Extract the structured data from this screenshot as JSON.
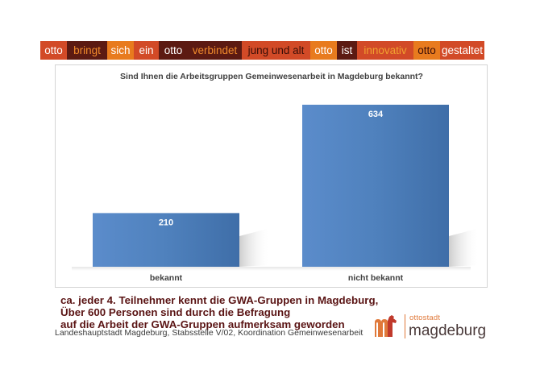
{
  "banner": [
    {
      "text": "otto",
      "bg": "#d24a27",
      "fg": "#ffffff"
    },
    {
      "text": "bringt",
      "bg": "#5c1a12",
      "fg": "#f08a2c"
    },
    {
      "text": "sich",
      "bg": "#e87b1e",
      "fg": "#ffffff"
    },
    {
      "text": "ein",
      "bg": "#d24a27",
      "fg": "#ffffff"
    },
    {
      "text": "otto",
      "bg": "#5c1a12",
      "fg": "#ffffff"
    },
    {
      "text": "verbindet",
      "bg": "#5c1a12",
      "fg": "#f08a2c"
    },
    {
      "text": "jung und alt",
      "bg": "#d24a27",
      "fg": "#3a0e08"
    },
    {
      "text": "otto",
      "bg": "#e87b1e",
      "fg": "#ffffff"
    },
    {
      "text": "ist",
      "bg": "#5c1a12",
      "fg": "#ffffff"
    },
    {
      "text": "innovativ",
      "bg": "#d24a27",
      "fg": "#f0a030"
    },
    {
      "text": "otto",
      "bg": "#e87b1e",
      "fg": "#3a0e08"
    },
    {
      "text": "gestaltet",
      "bg": "#d24a27",
      "fg": "#ffffff"
    }
  ],
  "chart_data": {
    "type": "bar",
    "title": "Sind Ihnen die Arbeitsgruppen Gemeinwesenarbeit in Magdeburg bekannt?",
    "categories": [
      "bekannt",
      "nicht bekannt"
    ],
    "values": [
      210,
      634
    ],
    "data_labels": [
      "210",
      "634"
    ],
    "ylim": [
      0,
      700
    ],
    "grid": false,
    "bar_color": "#4f81bd"
  },
  "summary": [
    "ca. jeder 4. Teilnehmer kennt die GWA-Gruppen in Magdeburg,",
    "Über 600 Personen sind durch die Befragung",
    "auf die Arbeit der GWA-Gruppen aufmerksam geworden"
  ],
  "footer": "Landeshauptstadt Magdeburg, Stabsstelle V/02, Koordination Gemeinwesenarbeit",
  "logo": {
    "top": "ottostadt",
    "main": "magdeburg"
  }
}
